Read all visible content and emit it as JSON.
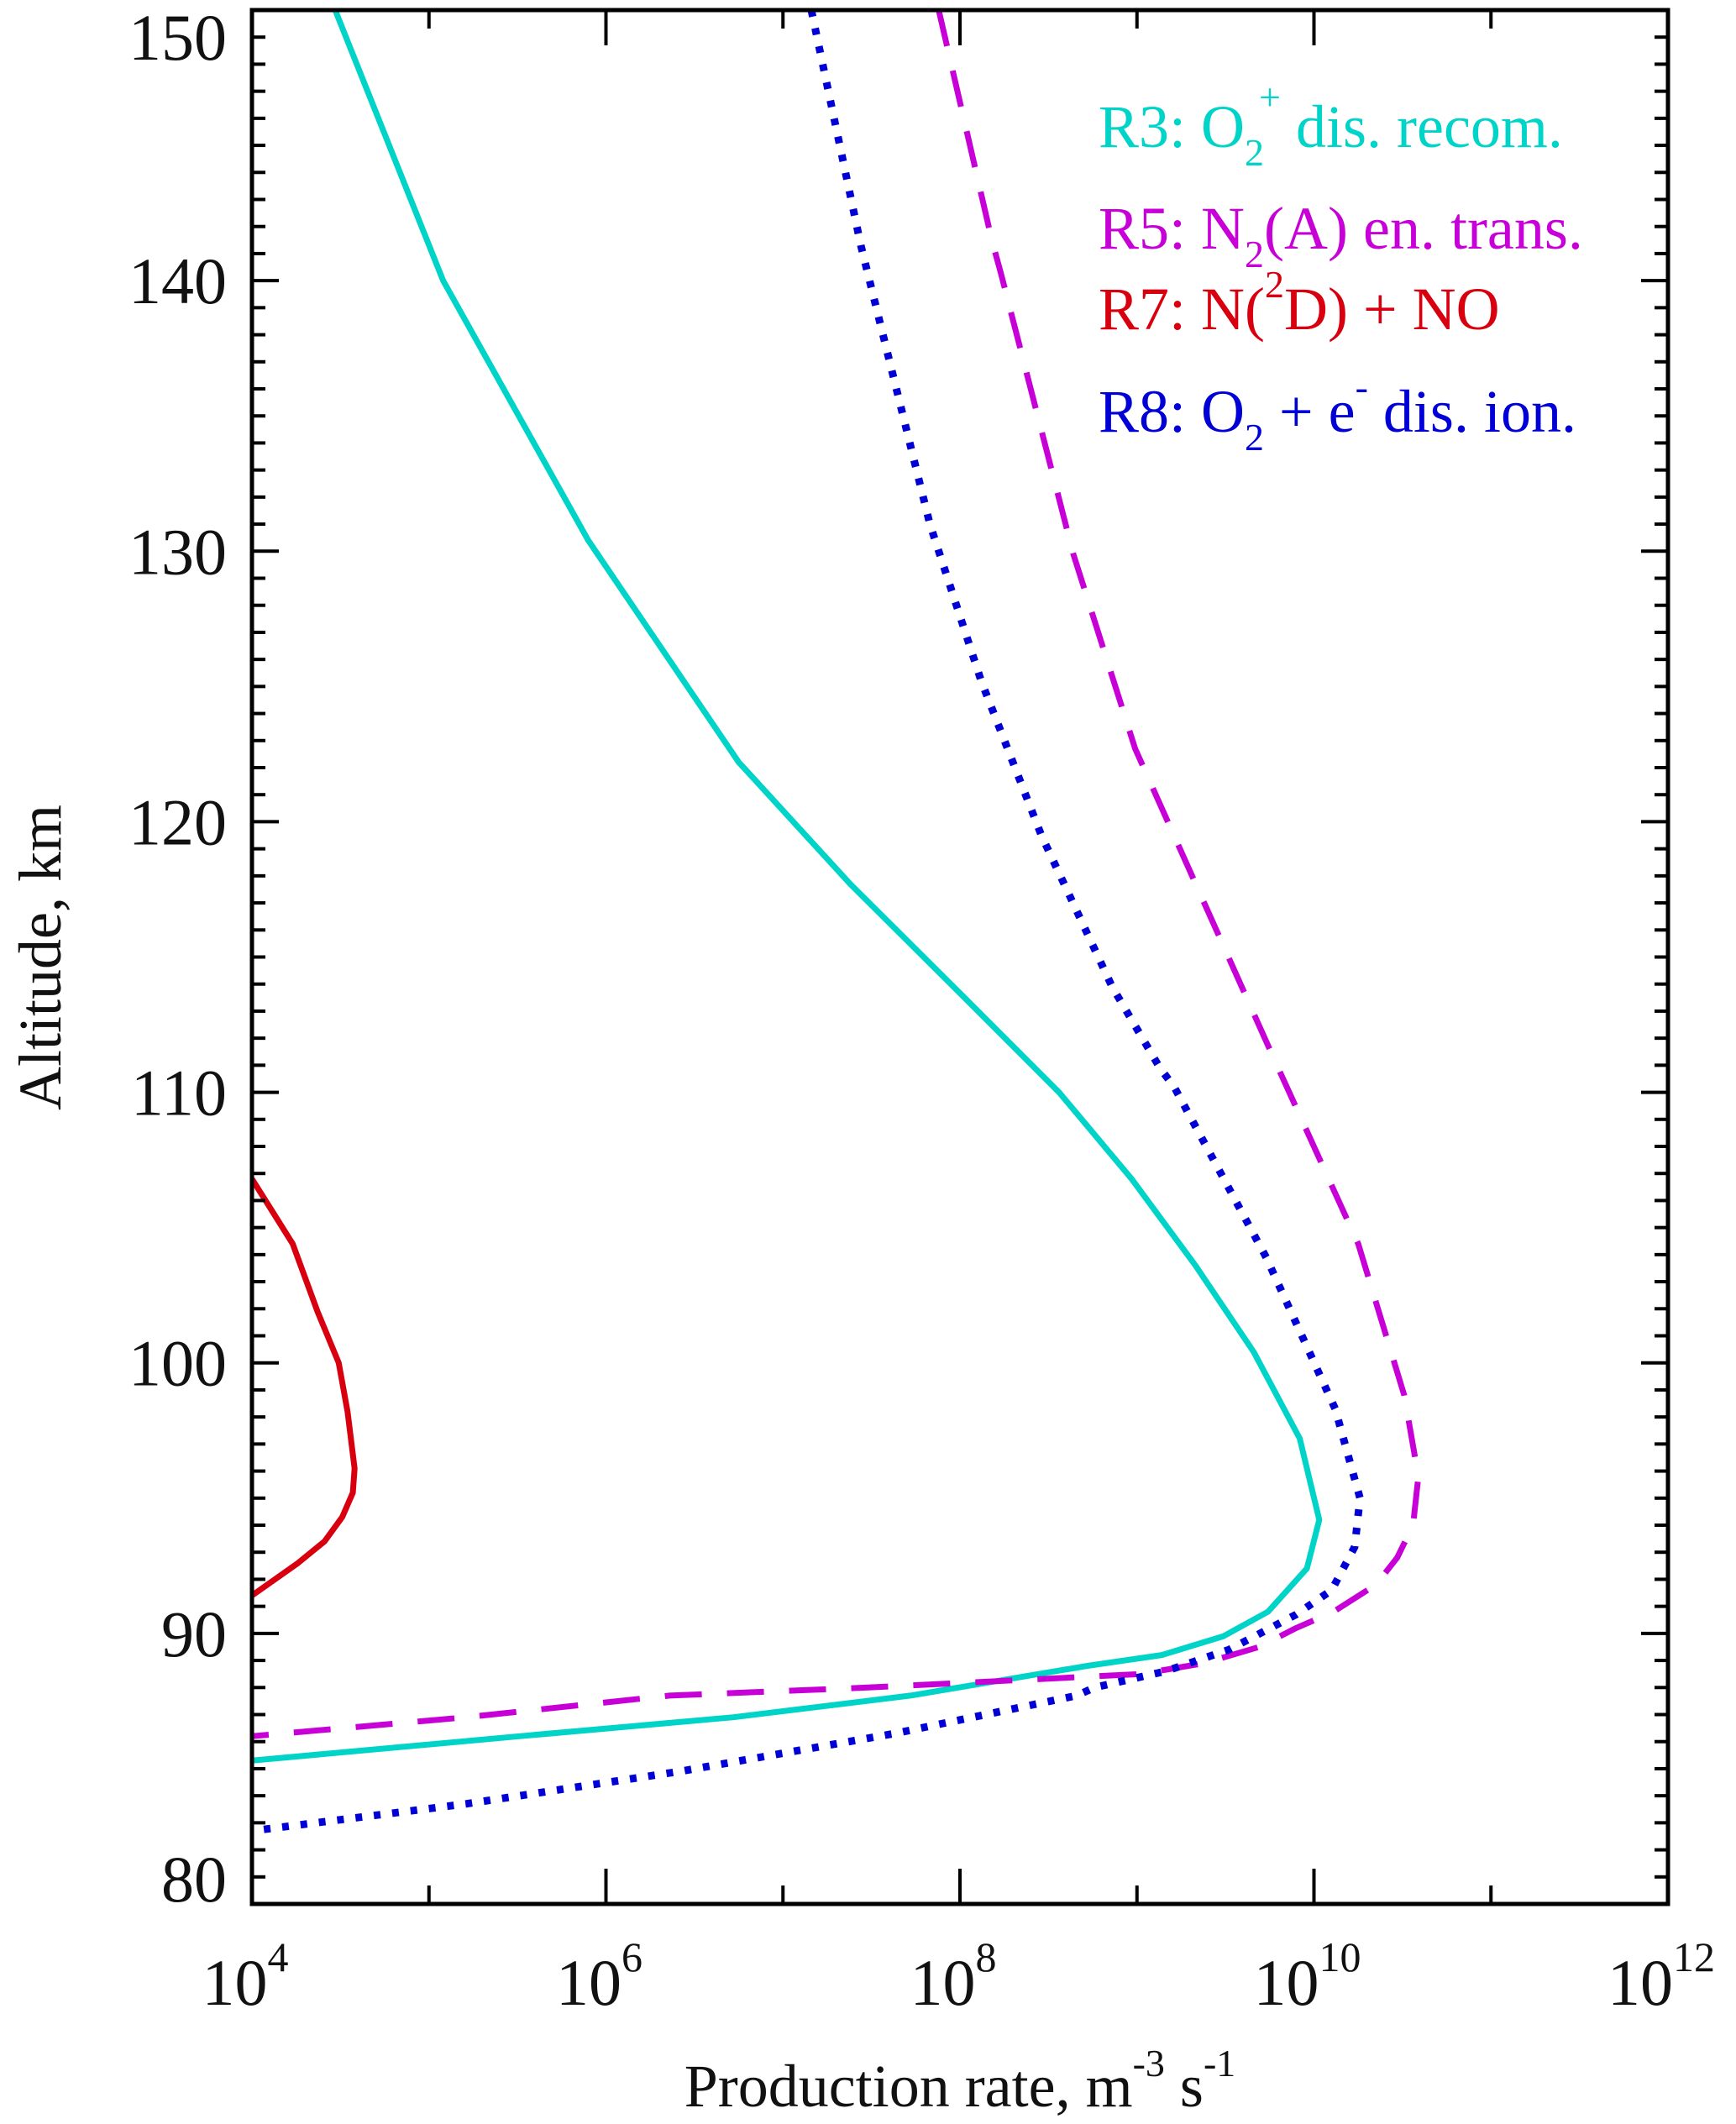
{
  "chart_data": {
    "type": "line",
    "title": "",
    "xlabel": {
      "main": "Production rate, m",
      "sup1": "-3",
      "mid": " s",
      "sup2": "-1"
    },
    "ylabel": "Altitude, km",
    "xscale": "log",
    "xlim": [
      10000,
      1000000000000
    ],
    "ylim": [
      80,
      150
    ],
    "x_major_exponents": [
      4,
      6,
      8,
      10,
      12
    ],
    "x_minor_exponents": [
      5,
      7,
      9,
      11
    ],
    "x_tick_labels": [
      {
        "base": "10",
        "exp": "4"
      },
      {
        "base": "10",
        "exp": "6"
      },
      {
        "base": "10",
        "exp": "8"
      },
      {
        "base": "10",
        "exp": "10"
      },
      {
        "base": "10",
        "exp": "12"
      }
    ],
    "y_major_ticks": [
      80,
      90,
      100,
      110,
      120,
      130,
      140,
      150
    ],
    "y_tick_labels": [
      "80",
      "90",
      "100",
      "110",
      "120",
      "130",
      "140",
      "150"
    ],
    "y_minor_step": 1,
    "grid": false,
    "legend_position": "top-right",
    "series": [
      {
        "name": "R3",
        "legend": {
          "pre": "R3: O",
          "sub": "2",
          "sup": "+",
          "post": " dis. recom."
        },
        "color": "#00d4c8",
        "style": "solid",
        "log10_x": [
          4.47,
          5.08,
          5.9,
          6.75,
          7.38,
          8.01,
          8.56,
          8.97,
          9.33,
          9.66,
          9.92,
          10.03,
          9.96,
          9.74,
          9.49,
          9.14,
          8.72,
          7.72,
          6.72,
          5.51,
          4.0
        ],
        "y": [
          150.0,
          140.0,
          130.4,
          122.2,
          117.7,
          113.6,
          110.0,
          106.8,
          103.6,
          100.4,
          97.2,
          94.2,
          92.4,
          90.8,
          89.9,
          89.2,
          88.8,
          87.7,
          86.9,
          86.2,
          85.3
        ]
      },
      {
        "name": "R5",
        "legend": {
          "pre": "R5: N",
          "sub": "2",
          "sup": "",
          "post": "(A) en. trans."
        },
        "color": "#c800d8",
        "style": "dashed",
        "log10_x": [
          7.88,
          8.18,
          8.23,
          8.64,
          8.99,
          9.38,
          9.77,
          10.25,
          10.51,
          10.59,
          10.56,
          10.47,
          10.35,
          10.11,
          9.9,
          9.69,
          9.38,
          9.02,
          8.72,
          7.48,
          6.36,
          5.21,
          4.0
        ],
        "y": [
          150.0,
          141.5,
          140.3,
          129.9,
          122.7,
          117.0,
          111.3,
          104.4,
          98.8,
          95.8,
          94.0,
          92.8,
          91.8,
          90.8,
          90.2,
          89.5,
          88.9,
          88.5,
          88.4,
          88.0,
          87.7,
          86.9,
          86.2
        ]
      },
      {
        "name": "R7",
        "legend": {
          "pre": "R7: N(",
          "sub": "",
          "sup": "2",
          "post": "D) + NO"
        },
        "color": "#d8000f",
        "style": "solid",
        "log10_x": [
          4.0,
          4.23,
          4.37,
          4.49,
          4.54,
          4.58,
          4.57,
          4.51,
          4.41,
          4.26,
          4.0
        ],
        "y": [
          106.8,
          104.4,
          101.9,
          100.0,
          98.2,
          96.1,
          95.2,
          94.3,
          93.4,
          92.6,
          91.4
        ]
      },
      {
        "name": "R8",
        "legend": {
          "pre": "R8: O",
          "sub": "2",
          "sup": "-",
          "post": " dis. ion.",
          "mid": " + e"
        },
        "color": "#0000d6",
        "style": "dotted",
        "log10_x": [
          7.16,
          7.44,
          7.83,
          8.12,
          8.46,
          8.86,
          9.13,
          9.21,
          9.73,
          10.12,
          10.26,
          10.23,
          10.1,
          9.9,
          9.52,
          9.16,
          8.76,
          8.66,
          7.63,
          6.42,
          5.21,
          4.0
        ],
        "y": [
          150.0,
          141.3,
          131.0,
          125.2,
          119.5,
          113.9,
          110.9,
          110.2,
          103.9,
          98.3,
          95.0,
          93.2,
          91.6,
          90.7,
          89.4,
          88.6,
          88.0,
          87.7,
          86.3,
          84.9,
          83.7,
          82.7
        ]
      }
    ]
  }
}
